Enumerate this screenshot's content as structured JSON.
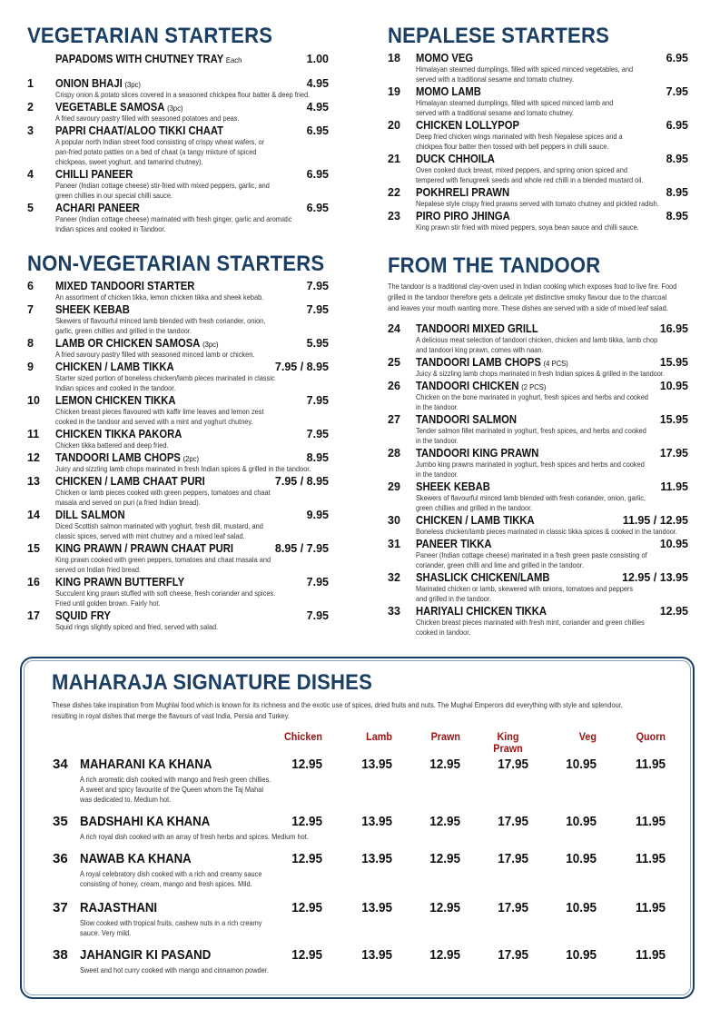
{
  "colors": {
    "heading": "#1a3e64",
    "column_header": "#9b1111",
    "text": "#111111"
  },
  "veg": {
    "title": "VEGETARIAN STARTERS",
    "papadoms": {
      "name": "PAPADOMS WITH CHUTNEY TRAY",
      "note": "Each",
      "price": "1.00"
    },
    "items": [
      {
        "num": "1",
        "name": "ONION BHAJI",
        "note": "(3pc)",
        "price": "4.95",
        "desc": [
          "Crispy onion & potato slices covered in a seasoned chickpea flour batter & deep fried."
        ]
      },
      {
        "num": "2",
        "name": "VEGETABLE SAMOSA",
        "note": "(3pc)",
        "price": "4.95",
        "desc": [
          "A fried savoury pastry filled with seasoned potatoes and peas."
        ]
      },
      {
        "num": "3",
        "name": "PAPRI CHAAT/ALOO TIKKI CHAAT",
        "note": "",
        "price": "6.95",
        "desc": [
          "A popular north Indian street food consisting of crispy wheat wafers, or",
          "pan-fried potato patties on a bed of chaat (a tangy mixture of spiced",
          "chickpeas, sweet yoghurt, and tamarind chutney)."
        ]
      },
      {
        "num": "4",
        "name": "CHILLI PANEER",
        "note": "",
        "price": "6.95",
        "desc": [
          "Paneer (Indian cottage cheese) stir-fried with mixed peppers, garlic, and",
          "green chillies in our special chilli sauce."
        ]
      },
      {
        "num": "5",
        "name": "ACHARI PANEER",
        "note": "",
        "price": "6.95",
        "desc": [
          "Paneer (Indian cottage cheese) marinated with fresh ginger, garlic and aromatic",
          "Indian spices and cooked in Tandoor."
        ]
      }
    ]
  },
  "nonveg": {
    "title": "NON-VEGETARIAN STARTERS",
    "items": [
      {
        "num": "6",
        "name": "MIXED TANDOORI STARTER",
        "note": "",
        "price": "7.95",
        "desc": [
          "An assortment of chicken tikka, lemon chicken tikka and sheek kebab."
        ]
      },
      {
        "num": "7",
        "name": "SHEEK KEBAB",
        "note": "",
        "price": "7.95",
        "desc": [
          "Skewers of flavourful minced lamb blended with fresh coriander, onion,",
          "garlic, green chillies and grilled in the tandoor."
        ]
      },
      {
        "num": "8",
        "name": "LAMB OR CHICKEN SAMOSA",
        "note": "(3pc)",
        "price": "5.95",
        "desc": [
          "A fried savoury pastry filled with seasoned minced lamb or chicken."
        ]
      },
      {
        "num": "9",
        "name": "CHICKEN / LAMB TIKKA",
        "note": "",
        "price": "7.95 / 8.95",
        "desc": [
          "Starter sized portion of boneless chicken/lamb pieces marinated in classic",
          "Indian spices and cooked in the tandoor."
        ]
      },
      {
        "num": "10",
        "name": "LEMON CHICKEN TIKKA",
        "note": "",
        "price": "7.95",
        "desc": [
          "Chicken breast pieces flavoured with kaffir lime leaves and lemon zest",
          "cooked in the tandoor and served with a mint and yoghurt chutney."
        ]
      },
      {
        "num": "11",
        "name": "CHICKEN TIKKA PAKORA",
        "note": "",
        "price": "7.95",
        "desc": [
          "Chicken tikka battered and deep fried."
        ]
      },
      {
        "num": "12",
        "name": "TANDOORI LAMB CHOPS",
        "note": "(2pc)",
        "price": "8.95",
        "desc": [
          "Juicy and sizzling lamb chops marinated in fresh Indian spices & grilled in the tandoor."
        ]
      },
      {
        "num": "13",
        "name": "CHICKEN / LAMB CHAAT PURI",
        "note": "",
        "price": "7.95 / 8.95",
        "desc": [
          "Chicken or lamb pieces cooked with green peppers, tomatoes and chaat",
          "masala and served on puri (a fried Indian bread)."
        ]
      },
      {
        "num": "14",
        "name": "DILL SALMON",
        "note": "",
        "price": "9.95",
        "desc": [
          "Diced Scottish salmon marinated with yoghurt, fresh dill, mustard, and",
          "classic spices, served with mint chutney and a mixed leaf salad."
        ]
      },
      {
        "num": "15",
        "name": "KING PRAWN / PRAWN CHAAT PURI",
        "note": "",
        "price": "8.95 / 7.95",
        "desc": [
          "King prawn cooked with green peppers, tomatoes and chaat masala and",
          "served on Indian fried bread."
        ]
      },
      {
        "num": "16",
        "name": "KING PRAWN BUTTERFLY",
        "note": "",
        "price": "7.95",
        "desc": [
          "Succulent king prawn stuffed with soft cheese, fresh coriander and spices.",
          "Fried until golden brown. Fairly hot."
        ]
      },
      {
        "num": "17",
        "name": "SQUID FRY",
        "note": "",
        "price": "7.95",
        "desc": [
          "Squid rings slightly spiced and fried, served with salad."
        ]
      }
    ]
  },
  "nepalese": {
    "title": "NEPALESE STARTERS",
    "items": [
      {
        "num": "18",
        "name": "MOMO VEG",
        "note": "",
        "price": "6.95",
        "desc": [
          "Himalayan steamed dumplings, filled with spiced minced vegetables, and",
          "served with a traditional sesame and tomato chutney."
        ]
      },
      {
        "num": "19",
        "name": "MOMO LAMB",
        "note": "",
        "price": "7.95",
        "desc": [
          "Himalayan steamed dumplings, filled with spiced minced lamb and",
          "served with a traditional sesame and tomato chutney."
        ]
      },
      {
        "num": "20",
        "name": "CHICKEN LOLLYPOP",
        "note": "",
        "price": "6.95",
        "desc": [
          "Deep fried chicken wings marinated with fresh Nepalese spices and a",
          "chickpea flour batter then tossed with bell peppers in chilli sauce."
        ]
      },
      {
        "num": "21",
        "name": "DUCK CHHOILA",
        "note": "",
        "price": "8.95",
        "desc": [
          "Oven cooked duck breast, mixed peppers, and spring onion spiced and",
          "tempered with fenugreek seeds and whole red chilli in a blended mustard oil."
        ]
      },
      {
        "num": "22",
        "name": "POKHRELI PRAWN",
        "note": "",
        "price": "8.95",
        "desc": [
          "Nepalese style crispy fried prawns served with tomato chutney and pickled radish."
        ]
      },
      {
        "num": "23",
        "name": "PIRO PIRO JHINGA",
        "note": "",
        "price": "8.95",
        "desc": [
          "King prawn stir fried with mixed peppers, soya bean sauce and chilli sauce."
        ]
      }
    ]
  },
  "tandoor": {
    "title": "FROM THE TANDOOR",
    "intro": [
      "The tandoor is a traditional clay-oven used in Indian cooking which exposes food to live fire. Food",
      "grilled in the tandoor therefore gets a delicate yet distinctive smoky flavour due to the charcoal",
      "and leaves your mouth wanting more. These dishes are served with a side of mixed leaf salad."
    ],
    "items": [
      {
        "num": "24",
        "name": "TANDOORI MIXED GRILL",
        "note": "",
        "price": "16.95",
        "desc": [
          "A delicious meat selection of tandoori chicken, chicken and lamb tikka, lamb chop",
          "and tandoori king prawn, comes with naan."
        ]
      },
      {
        "num": "25",
        "name": "TANDOORI LAMB CHOPS",
        "note": "(4 PCS)",
        "price": "15.95",
        "desc": [
          "Juicy & sizzling lamb chops marinated in fresh Indian spices & grilled in the tandoor."
        ]
      },
      {
        "num": "26",
        "name": "TANDOORI CHICKEN",
        "note": "(2 PCS)",
        "price": "10.95",
        "desc": [
          "Chicken on the bone marinated in yoghurt, fresh spices and herbs and cooked",
          "in the tandoor."
        ]
      },
      {
        "num": "27",
        "name": "TANDOORI SALMON",
        "note": "",
        "price": "15.95",
        "desc": [
          "Tender salmon fillet marinated in yoghurt, fresh spices, and herbs and cooked",
          "in the tandoor."
        ]
      },
      {
        "num": "28",
        "name": "TANDOORI KING PRAWN",
        "note": "",
        "price": "17.95",
        "desc": [
          "Jumbo king prawns marinated in yoghurt, fresh spices and herbs and cooked",
          "in the tandoor."
        ]
      },
      {
        "num": "29",
        "name": "SHEEK KEBAB",
        "note": "",
        "price": "11.95",
        "desc": [
          "Skewers of flavourful minced lamb blended with fresh coriander, onion, garlic,",
          "green chillies and grilled in the tandoor."
        ]
      },
      {
        "num": "30",
        "name": "CHICKEN / LAMB TIKKA",
        "note": "",
        "price": "11.95 / 12.95",
        "desc": [
          "Boneless chicken/lamb pieces marinated in classic tikka spices & cooked in the tandoor."
        ]
      },
      {
        "num": "31",
        "name": "PANEER TIKKA",
        "note": "",
        "price": "10.95",
        "desc": [
          "Paneer (Indian cottage cheese) marinated in a fresh green paste consisting of",
          "coriander, green chilli and lime and grilled in the tandoor."
        ]
      },
      {
        "num": "32",
        "name": "SHASLICK CHICKEN/LAMB",
        "note": "",
        "price": "12.95 / 13.95",
        "desc": [
          "Marinated chicken or lamb, skewered with onions, tomatoes and peppers",
          "and grilled in the tandoor."
        ]
      },
      {
        "num": "33",
        "name": "HARIYALI CHICKEN TIKKA",
        "note": "",
        "price": "12.95",
        "desc": [
          "Chicken breast pieces marinated with fresh mint, coriander and green chillies",
          "cooked in tandoor."
        ]
      }
    ]
  },
  "signature": {
    "title": "MAHARAJA SIGNATURE DISHES",
    "intro": [
      "These dishes take inspiration from Mughlai food which is known for its richness and the exotic use of spices, dried fruits and nuts. The Mughal Emperors did everything with style and splendour,",
      "resulting in royal dishes that merge the flavours of vast India, Persia and Turkey."
    ],
    "columns": [
      "Chicken",
      "Lamb",
      "Prawn",
      "King Prawn",
      "Veg",
      "Quorn"
    ],
    "items": [
      {
        "num": "34",
        "name": "MAHARANI KA KHANA",
        "prices": [
          "12.95",
          "13.95",
          "12.95",
          "17.95",
          "10.95",
          "11.95"
        ],
        "desc": [
          "A rich aromatic dish cooked with mango and fresh green chillies.",
          "A sweet and spicy favourite of the Queen whom the Taj Mahal",
          "was dedicated to. Medium hot."
        ]
      },
      {
        "num": "35",
        "name": "BADSHAHI KA KHANA",
        "prices": [
          "12.95",
          "13.95",
          "12.95",
          "17.95",
          "10.95",
          "11.95"
        ],
        "desc": [
          "A rich royal dish cooked with an array of fresh herbs and spices. Medium hot."
        ]
      },
      {
        "num": "36",
        "name": "NAWAB KA KHANA",
        "prices": [
          "12.95",
          "13.95",
          "12.95",
          "17.95",
          "10.95",
          "11.95"
        ],
        "desc": [
          "A royal celebratory dish cooked with a rich and creamy sauce",
          "consisting of honey, cream, mango and fresh spices. Mild."
        ]
      },
      {
        "num": "37",
        "name": "RAJASTHANI",
        "prices": [
          "12.95",
          "13.95",
          "12.95",
          "17.95",
          "10.95",
          "11.95"
        ],
        "desc": [
          "Slow cooked with tropical fruits, cashew nuts in a rich creamy",
          "sauce. Very mild."
        ]
      },
      {
        "num": "38",
        "name": "JAHANGIR KI PASAND",
        "prices": [
          "12.95",
          "13.95",
          "12.95",
          "17.95",
          "10.95",
          "11.95"
        ],
        "desc": [
          "Sweet and hot curry cooked with mango and cinnamon powder."
        ]
      }
    ]
  }
}
